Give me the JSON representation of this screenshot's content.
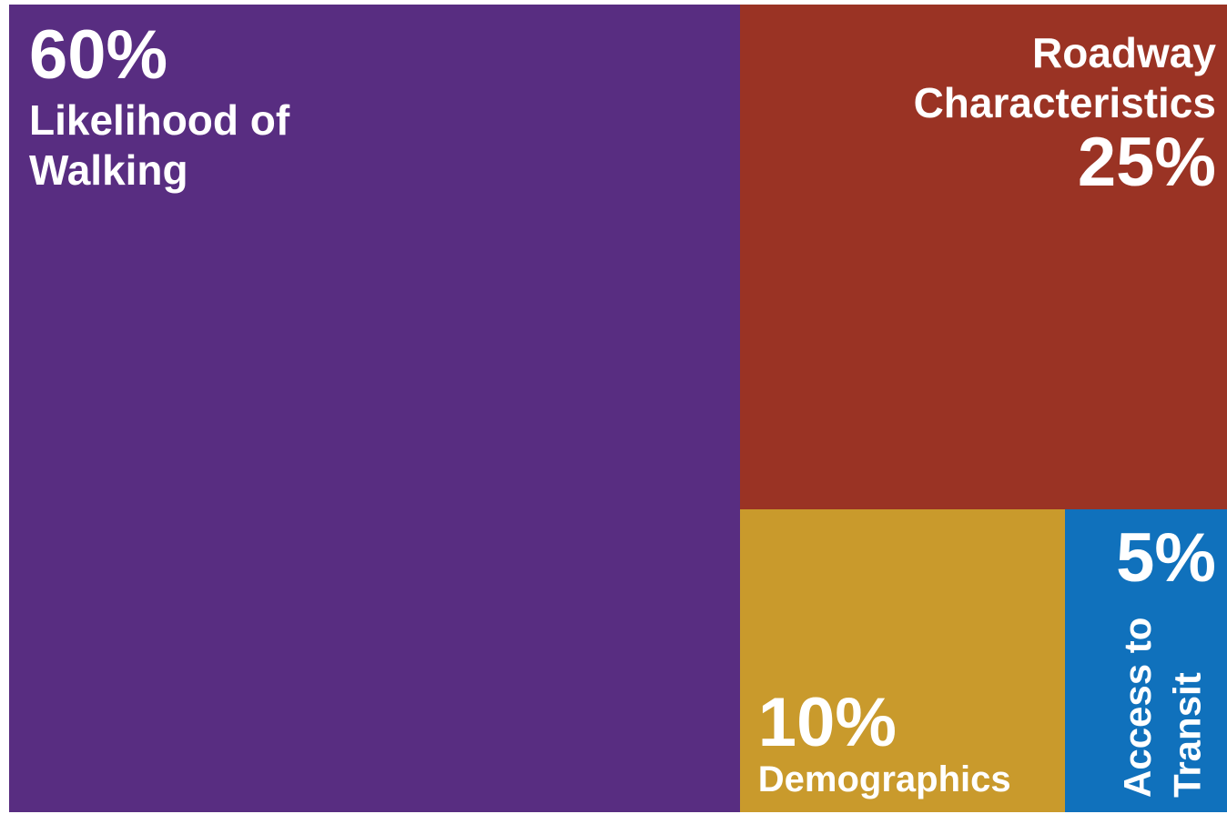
{
  "chart_data": {
    "type": "treemap",
    "categories": [
      "Likelihood of Walking",
      "Roadway Characteristics",
      "Demographics",
      "Access to Transit"
    ],
    "values": [
      60,
      25,
      10,
      5
    ],
    "value_labels": [
      "60%",
      "25%",
      "10%",
      "5%"
    ],
    "colors": [
      "#582d81",
      "#9a3324",
      "#c99a2c",
      "#1071bc"
    ]
  }
}
